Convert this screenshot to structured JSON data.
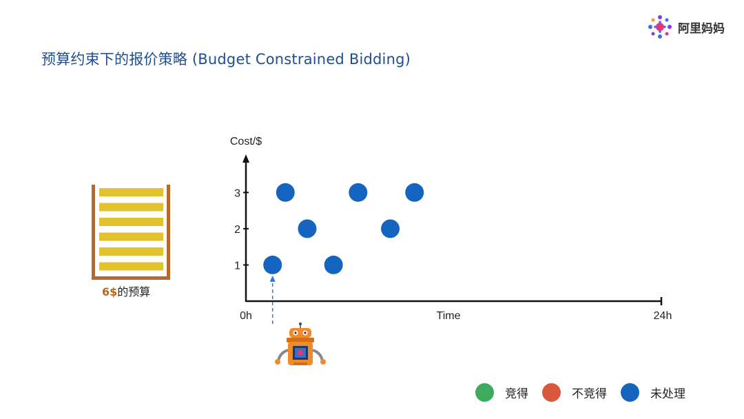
{
  "header": {
    "title": "预算约束下的报价策略 (Budget Constrained Bidding)",
    "brand_name": "阿里妈妈"
  },
  "budget": {
    "amount": "6$",
    "label": "的预算",
    "bars": 6,
    "bar_color": "#e3c22f",
    "container_color": "#b8682a"
  },
  "chart_data": {
    "type": "scatter",
    "ylabel": "Cost/$",
    "xlabel": "Time",
    "x_start_label": "0h",
    "x_end_label": "24h",
    "xlim": [
      0,
      24
    ],
    "ylim": [
      0,
      3.9
    ],
    "y_ticks": [
      1,
      2,
      3
    ],
    "series": [
      {
        "color": "#1464c0",
        "points": [
          {
            "x": 1.54,
            "y": 1
          },
          {
            "x": 2.28,
            "y": 3
          },
          {
            "x": 3.54,
            "y": 2
          },
          {
            "x": 5.06,
            "y": 1
          },
          {
            "x": 6.48,
            "y": 3
          },
          {
            "x": 8.34,
            "y": 2
          },
          {
            "x": 9.74,
            "y": 3
          }
        ]
      }
    ],
    "grid": false,
    "current_point_index": 0
  },
  "legend": {
    "items": [
      {
        "label": "竞得",
        "color": "#3daa5c"
      },
      {
        "label": "不竞得",
        "color": "#d9583b"
      },
      {
        "label": "未处理",
        "color": "#1464c0"
      }
    ]
  },
  "colors": {
    "title": "#1f4e8c",
    "axis": "#111111",
    "robot": "#f08a2b"
  }
}
